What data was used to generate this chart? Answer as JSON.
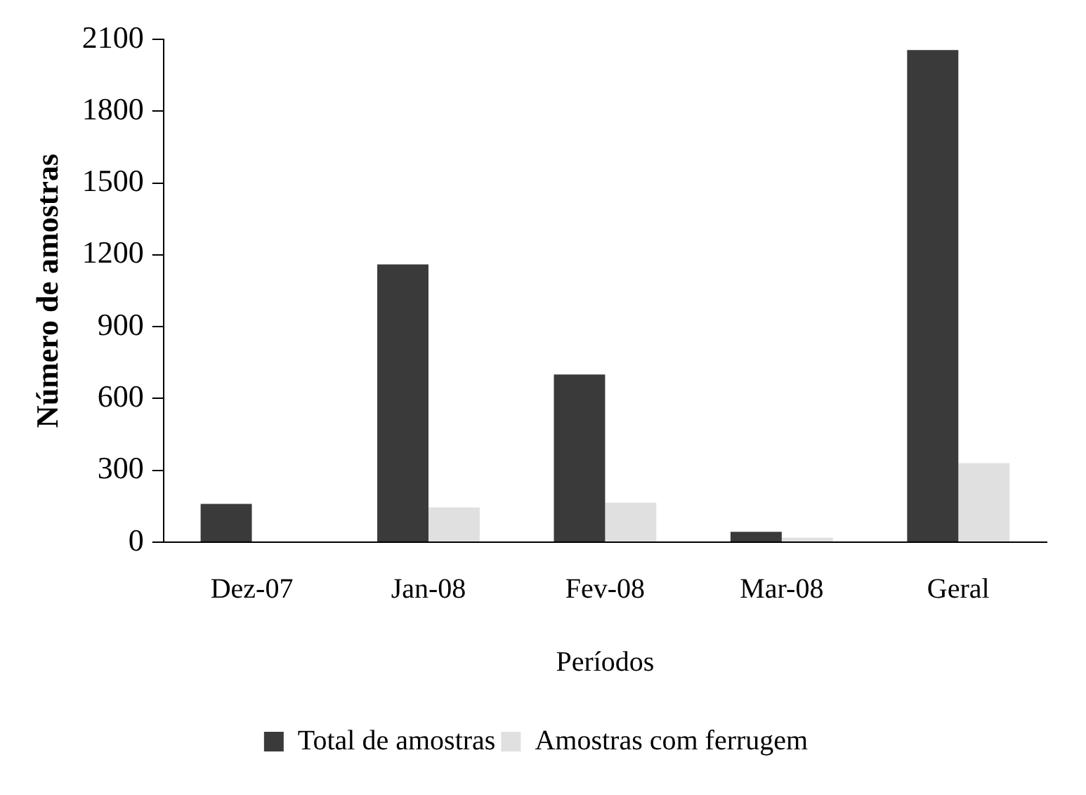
{
  "chart_data": {
    "type": "bar",
    "xlabel": "Períodos",
    "ylabel": "Número de amostras",
    "categories": [
      "Dez-07",
      "Jan-08",
      "Fev-08",
      "Mar-08",
      "Geral"
    ],
    "series": [
      {
        "name": "Total de amostras",
        "color": "#3a3a3a",
        "values": [
          160,
          1160,
          700,
          43,
          2055
        ]
      },
      {
        "name": "Amostras com ferrugem",
        "color": "#e0e0e0",
        "values": [
          0,
          145,
          165,
          19,
          330
        ]
      }
    ],
    "ylim": [
      0,
      2100
    ],
    "yticks": [
      0,
      300,
      600,
      900,
      1200,
      1500,
      1800,
      2100
    ],
    "grid": false,
    "legend": "bottom"
  }
}
